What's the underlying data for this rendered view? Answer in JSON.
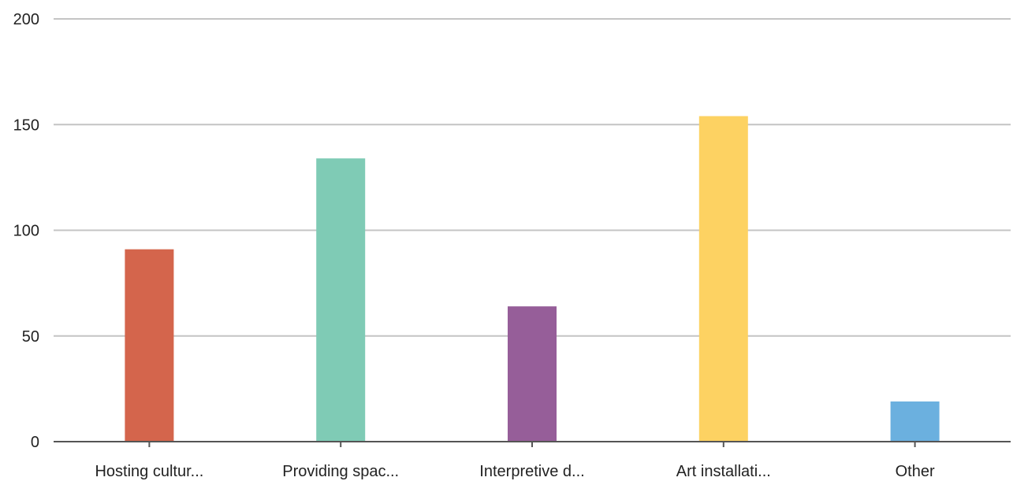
{
  "chart_data": {
    "type": "bar",
    "categories": [
      "Hosting cultur...",
      "Providing spac...",
      "Interpretive d...",
      "Art installati...",
      "Other"
    ],
    "values": [
      91,
      134,
      64,
      154,
      19
    ],
    "colors": [
      "#d4654c",
      "#7fcbb5",
      "#965e99",
      "#fdd262",
      "#6bb0df"
    ],
    "ylim": [
      0,
      200
    ],
    "yticks": [
      0,
      50,
      100,
      150,
      200
    ],
    "grid": true,
    "legend": "none"
  }
}
